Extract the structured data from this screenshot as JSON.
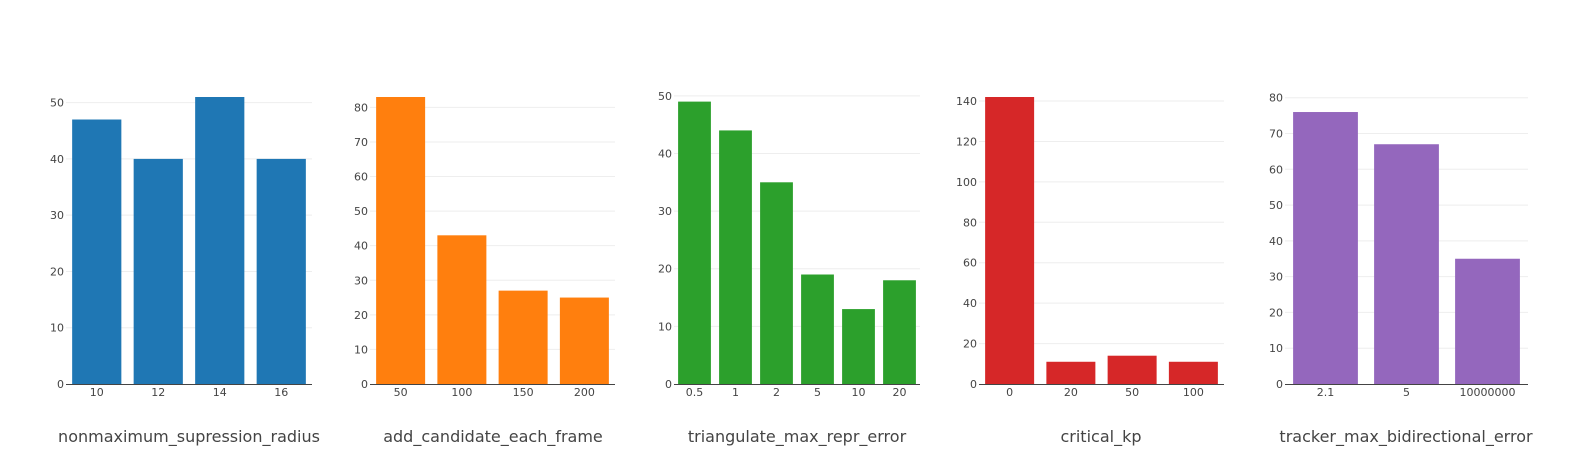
{
  "chart_data": [
    {
      "type": "bar",
      "xlabel": "nonmaximum_supression_radius",
      "categories": [
        "10",
        "12",
        "14",
        "16"
      ],
      "values": [
        47,
        40,
        51,
        40
      ],
      "yticks": [
        0,
        10,
        20,
        30,
        40,
        50
      ],
      "ylim": [
        0,
        51
      ],
      "color": "#1f77b4",
      "grid": true
    },
    {
      "type": "bar",
      "xlabel": "add_candidate_each_frame",
      "categories": [
        "50",
        "100",
        "150",
        "200"
      ],
      "values": [
        83,
        43,
        27,
        25
      ],
      "yticks": [
        0,
        10,
        20,
        30,
        40,
        50,
        60,
        70,
        80
      ],
      "ylim": [
        0,
        83
      ],
      "color": "#ff7f0e",
      "grid": true
    },
    {
      "type": "bar",
      "xlabel": "triangulate_max_repr_error",
      "categories": [
        "0.5",
        "1",
        "2",
        "5",
        "10",
        "20"
      ],
      "values": [
        49,
        44,
        35,
        19,
        13,
        18
      ],
      "yticks": [
        0,
        10,
        20,
        30,
        40,
        50
      ],
      "ylim": [
        0,
        49.8
      ],
      "color": "#2ca02c",
      "grid": true
    },
    {
      "type": "bar",
      "xlabel": "critical_kp",
      "categories": [
        "0",
        "20",
        "50",
        "100"
      ],
      "values": [
        142,
        11,
        14,
        11
      ],
      "yticks": [
        0,
        20,
        40,
        60,
        80,
        100,
        120,
        140
      ],
      "ylim": [
        0,
        142
      ],
      "color": "#d62728",
      "grid": true
    },
    {
      "type": "bar",
      "xlabel": "tracker_max_bidirectional_error",
      "categories": [
        "2.1",
        "5",
        "10000000"
      ],
      "values": [
        76,
        67,
        35
      ],
      "yticks": [
        0,
        10,
        20,
        30,
        40,
        50,
        60,
        70,
        80
      ],
      "ylim": [
        0,
        80.2
      ],
      "color": "#9467bd",
      "grid": true
    }
  ]
}
